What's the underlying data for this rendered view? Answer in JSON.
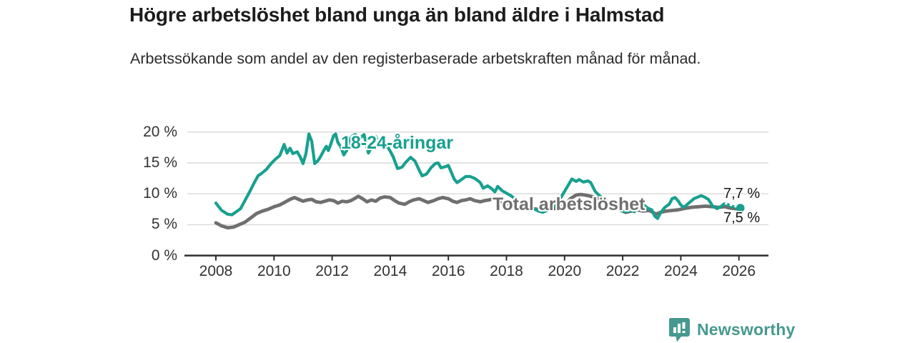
{
  "header": {
    "title": "Högre arbetslöshet bland unga än bland äldre i Halmstad",
    "subtitle": "Arbetssökande som andel av den registerbaserade arbetskraften månad för månad."
  },
  "chart_data": {
    "type": "line",
    "title": "Högre arbetslöshet bland unga än bland äldre i Halmstad",
    "subtitle": "Arbetssökande som andel av den registerbaserade arbetskraften månad för månad.",
    "xlabel": "",
    "ylabel": "",
    "grid": "horizontal",
    "legend_position": "inline-labels",
    "ylim": [
      0,
      20.5
    ],
    "xlim": [
      2007.5,
      2026.9
    ],
    "y_ticks": [
      0,
      5,
      10,
      15,
      20
    ],
    "y_tick_labels": [
      "0 %",
      "5 %",
      "10 %",
      "15 %",
      "20 %"
    ],
    "x_ticks": [
      2008,
      2010,
      2012,
      2014,
      2016,
      2018,
      2020,
      2022,
      2024,
      2026
    ],
    "x_tick_labels": [
      "2008",
      "2010",
      "2012",
      "2014",
      "2016",
      "2018",
      "2020",
      "2022",
      "2024",
      "2026"
    ],
    "series": [
      {
        "name": "18-24-åringar",
        "label": "18-24-åringar",
        "end_label": "7,7 %",
        "end_value": 7.7,
        "color": "#18a08f",
        "data": [
          [
            2008.0,
            8.5
          ],
          [
            2008.2,
            7.3
          ],
          [
            2008.4,
            6.7
          ],
          [
            2008.55,
            6.6
          ],
          [
            2008.7,
            7.1
          ],
          [
            2008.85,
            7.6
          ],
          [
            2009.0,
            8.9
          ],
          [
            2009.15,
            10.2
          ],
          [
            2009.3,
            11.6
          ],
          [
            2009.45,
            12.9
          ],
          [
            2009.6,
            13.4
          ],
          [
            2009.75,
            14.0
          ],
          [
            2009.9,
            14.9
          ],
          [
            2010.05,
            15.6
          ],
          [
            2010.2,
            16.2
          ],
          [
            2010.35,
            18.0
          ],
          [
            2010.45,
            16.6
          ],
          [
            2010.55,
            17.4
          ],
          [
            2010.65,
            16.5
          ],
          [
            2010.8,
            16.8
          ],
          [
            2010.9,
            16.0
          ],
          [
            2011.0,
            14.9
          ],
          [
            2011.1,
            16.5
          ],
          [
            2011.2,
            19.7
          ],
          [
            2011.3,
            18.5
          ],
          [
            2011.4,
            14.9
          ],
          [
            2011.5,
            15.3
          ],
          [
            2011.6,
            16.0
          ],
          [
            2011.7,
            16.9
          ],
          [
            2011.8,
            17.7
          ],
          [
            2011.87,
            17.0
          ],
          [
            2011.95,
            18.0
          ],
          [
            2012.05,
            19.4
          ],
          [
            2012.12,
            19.7
          ],
          [
            2012.2,
            18.3
          ],
          [
            2012.3,
            17.6
          ],
          [
            2012.4,
            16.3
          ],
          [
            2012.5,
            17.0
          ],
          [
            2012.6,
            18.8
          ],
          [
            2012.7,
            19.4
          ],
          [
            2012.8,
            19.6
          ],
          [
            2012.9,
            18.9
          ],
          [
            2013.0,
            19.2
          ],
          [
            2013.1,
            19.6
          ],
          [
            2013.25,
            16.6
          ],
          [
            2013.4,
            18.0
          ],
          [
            2013.5,
            19.3
          ],
          [
            2013.6,
            18.2
          ],
          [
            2013.75,
            17.4
          ],
          [
            2013.9,
            17.7
          ],
          [
            2014.0,
            16.9
          ],
          [
            2014.1,
            16.0
          ],
          [
            2014.25,
            14.1
          ],
          [
            2014.4,
            14.3
          ],
          [
            2014.55,
            15.2
          ],
          [
            2014.7,
            15.9
          ],
          [
            2014.85,
            15.3
          ],
          [
            2015.0,
            13.8
          ],
          [
            2015.1,
            12.9
          ],
          [
            2015.25,
            13.2
          ],
          [
            2015.4,
            14.2
          ],
          [
            2015.55,
            14.9
          ],
          [
            2015.65,
            15.0
          ],
          [
            2015.75,
            14.2
          ],
          [
            2015.9,
            14.4
          ],
          [
            2016.0,
            14.6
          ],
          [
            2016.1,
            13.5
          ],
          [
            2016.2,
            12.4
          ],
          [
            2016.3,
            11.8
          ],
          [
            2016.45,
            12.3
          ],
          [
            2016.6,
            12.8
          ],
          [
            2016.75,
            12.8
          ],
          [
            2016.9,
            12.5
          ],
          [
            2017.0,
            12.2
          ],
          [
            2017.1,
            11.8
          ],
          [
            2017.2,
            10.9
          ],
          [
            2017.35,
            11.3
          ],
          [
            2017.5,
            10.8
          ],
          [
            2017.6,
            10.3
          ],
          [
            2017.7,
            11.2
          ],
          [
            2017.85,
            10.5
          ],
          [
            2018.0,
            10.1
          ],
          [
            2018.15,
            9.7
          ],
          [
            2018.3,
            9.2
          ],
          [
            2018.5,
            8.6
          ],
          [
            2018.7,
            8.1
          ],
          [
            2018.9,
            7.7
          ],
          [
            2019.1,
            7.2
          ],
          [
            2019.25,
            7.0
          ],
          [
            2019.4,
            7.3
          ],
          [
            2019.6,
            7.8
          ],
          [
            2019.8,
            8.8
          ],
          [
            2019.95,
            10.0
          ],
          [
            2020.1,
            11.2
          ],
          [
            2020.25,
            12.4
          ],
          [
            2020.4,
            12.0
          ],
          [
            2020.5,
            12.3
          ],
          [
            2020.65,
            11.9
          ],
          [
            2020.8,
            12.1
          ],
          [
            2020.9,
            11.8
          ],
          [
            2021.05,
            10.4
          ],
          [
            2021.2,
            9.7
          ],
          [
            2021.4,
            9.0
          ],
          [
            2021.6,
            8.3
          ],
          [
            2021.8,
            7.7
          ],
          [
            2022.0,
            7.2
          ],
          [
            2022.15,
            7.1
          ],
          [
            2022.3,
            7.4
          ],
          [
            2022.4,
            7.1
          ],
          [
            2022.55,
            7.9
          ],
          [
            2022.65,
            7.6
          ],
          [
            2022.75,
            8.1
          ],
          [
            2022.85,
            7.7
          ],
          [
            2023.0,
            7.4
          ],
          [
            2023.1,
            6.4
          ],
          [
            2023.2,
            6.0
          ],
          [
            2023.3,
            6.9
          ],
          [
            2023.45,
            7.8
          ],
          [
            2023.6,
            8.3
          ],
          [
            2023.7,
            9.2
          ],
          [
            2023.8,
            9.4
          ],
          [
            2023.9,
            8.9
          ],
          [
            2024.0,
            8.2
          ],
          [
            2024.1,
            7.8
          ],
          [
            2024.25,
            8.4
          ],
          [
            2024.45,
            9.2
          ],
          [
            2024.6,
            9.5
          ],
          [
            2024.7,
            9.7
          ],
          [
            2024.8,
            9.5
          ],
          [
            2024.95,
            9.1
          ],
          [
            2025.1,
            8.0
          ],
          [
            2025.25,
            7.6
          ],
          [
            2025.4,
            8.0
          ],
          [
            2025.5,
            8.4
          ],
          [
            2025.65,
            8.2
          ],
          [
            2025.8,
            7.9
          ],
          [
            2025.95,
            7.8
          ],
          [
            2026.05,
            7.7
          ]
        ]
      },
      {
        "name": "Total arbetslöshet",
        "label": "Total arbetslöshet",
        "end_label": "7,5 %",
        "end_value": 7.5,
        "color": "#6f6f6f",
        "data": [
          [
            2008.0,
            5.3
          ],
          [
            2008.2,
            4.8
          ],
          [
            2008.4,
            4.5
          ],
          [
            2008.6,
            4.6
          ],
          [
            2008.8,
            5.0
          ],
          [
            2009.0,
            5.4
          ],
          [
            2009.2,
            6.1
          ],
          [
            2009.4,
            6.8
          ],
          [
            2009.6,
            7.2
          ],
          [
            2009.8,
            7.5
          ],
          [
            2010.0,
            7.9
          ],
          [
            2010.2,
            8.2
          ],
          [
            2010.4,
            8.7
          ],
          [
            2010.55,
            9.1
          ],
          [
            2010.7,
            9.4
          ],
          [
            2010.85,
            9.1
          ],
          [
            2011.0,
            8.8
          ],
          [
            2011.15,
            9.0
          ],
          [
            2011.3,
            9.1
          ],
          [
            2011.45,
            8.7
          ],
          [
            2011.6,
            8.6
          ],
          [
            2011.75,
            8.8
          ],
          [
            2011.9,
            9.0
          ],
          [
            2012.05,
            8.9
          ],
          [
            2012.2,
            8.5
          ],
          [
            2012.35,
            8.8
          ],
          [
            2012.5,
            8.7
          ],
          [
            2012.65,
            8.9
          ],
          [
            2012.8,
            9.3
          ],
          [
            2012.9,
            9.6
          ],
          [
            2013.05,
            9.2
          ],
          [
            2013.2,
            8.7
          ],
          [
            2013.35,
            9.0
          ],
          [
            2013.5,
            8.8
          ],
          [
            2013.65,
            9.3
          ],
          [
            2013.8,
            9.5
          ],
          [
            2014.0,
            9.4
          ],
          [
            2014.15,
            8.9
          ],
          [
            2014.3,
            8.5
          ],
          [
            2014.5,
            8.3
          ],
          [
            2014.65,
            8.7
          ],
          [
            2014.8,
            9.0
          ],
          [
            2015.0,
            9.2
          ],
          [
            2015.15,
            8.9
          ],
          [
            2015.3,
            8.6
          ],
          [
            2015.5,
            8.9
          ],
          [
            2015.65,
            9.2
          ],
          [
            2015.8,
            9.4
          ],
          [
            2016.0,
            9.2
          ],
          [
            2016.15,
            8.8
          ],
          [
            2016.3,
            8.6
          ],
          [
            2016.45,
            8.9
          ],
          [
            2016.6,
            9.0
          ],
          [
            2016.75,
            9.2
          ],
          [
            2016.9,
            8.9
          ],
          [
            2017.1,
            8.7
          ],
          [
            2017.25,
            8.9
          ],
          [
            2017.4,
            9.0
          ],
          [
            2017.55,
            9.2
          ],
          [
            2017.7,
            8.9
          ],
          [
            2017.9,
            8.6
          ],
          [
            2018.05,
            8.4
          ],
          [
            2018.3,
            8.1
          ],
          [
            2018.6,
            7.8
          ],
          [
            2018.9,
            7.6
          ],
          [
            2019.2,
            7.4
          ],
          [
            2019.5,
            7.5
          ],
          [
            2019.8,
            7.7
          ],
          [
            2020.0,
            8.1
          ],
          [
            2020.2,
            9.2
          ],
          [
            2020.4,
            9.8
          ],
          [
            2020.55,
            9.9
          ],
          [
            2020.7,
            9.8
          ],
          [
            2020.9,
            9.6
          ],
          [
            2021.1,
            9.3
          ],
          [
            2021.3,
            8.9
          ],
          [
            2021.5,
            8.4
          ],
          [
            2021.7,
            7.9
          ],
          [
            2021.9,
            7.4
          ],
          [
            2022.1,
            7.0
          ],
          [
            2022.3,
            7.2
          ],
          [
            2022.5,
            7.4
          ],
          [
            2022.7,
            7.2
          ],
          [
            2022.9,
            7.3
          ],
          [
            2023.0,
            7.1
          ],
          [
            2023.15,
            6.7
          ],
          [
            2023.3,
            7.0
          ],
          [
            2023.5,
            7.2
          ],
          [
            2023.7,
            7.3
          ],
          [
            2023.9,
            7.4
          ],
          [
            2024.1,
            7.6
          ],
          [
            2024.35,
            7.8
          ],
          [
            2024.6,
            7.9
          ],
          [
            2024.85,
            8.0
          ],
          [
            2025.1,
            7.9
          ],
          [
            2025.3,
            7.8
          ],
          [
            2025.5,
            7.9
          ],
          [
            2025.7,
            7.7
          ],
          [
            2025.85,
            7.6
          ],
          [
            2026.05,
            7.5
          ]
        ]
      }
    ],
    "colors": {
      "grid": "#dadada",
      "axis": "#2e2e2e",
      "tick_text": "#333333"
    }
  },
  "branding": {
    "name": "Newsworthy",
    "color": "#47998f"
  }
}
